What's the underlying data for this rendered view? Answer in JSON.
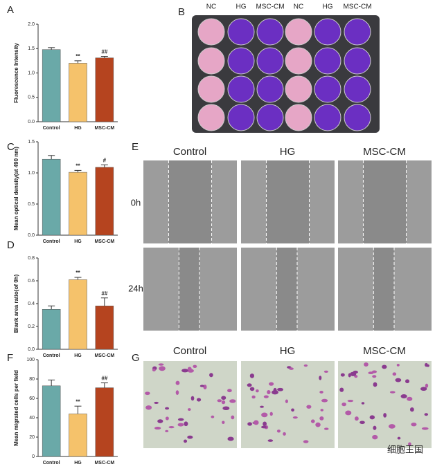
{
  "chart_data": [
    {
      "type": "bar",
      "y_label": "Fluorescence Intensity",
      "categories": [
        "Control",
        "HG",
        "MSC-CM"
      ],
      "values": [
        1.48,
        1.2,
        1.31
      ],
      "errors": [
        0.04,
        0.05,
        0.03
      ],
      "annotations": [
        null,
        "**",
        "##"
      ],
      "colors": [
        "#6aa9a8",
        "#f5c26b",
        "#b5441f"
      ],
      "ylim": [
        0,
        2
      ],
      "yticks": [
        {
          "value": 0,
          "label": "0.0"
        },
        0.5,
        {
          "value": 1,
          "label": "1.0"
        },
        1.5,
        {
          "value": 2,
          "label": "2.0"
        }
      ]
    },
    {
      "type": "bar",
      "y_label": "Mean optical density(at 490 nm)",
      "categories": [
        "Control",
        "HG",
        "MSC-CM"
      ],
      "values": [
        1.22,
        1.01,
        1.09
      ],
      "errors": [
        0.06,
        0.03,
        0.04
      ],
      "annotations": [
        null,
        "**",
        "#"
      ],
      "colors": [
        "#6aa9a8",
        "#f5c26b",
        "#b5441f"
      ],
      "ylim": [
        0,
        1.5
      ],
      "yticks": [
        {
          "value": 0,
          "label": "0.0"
        },
        0.5,
        {
          "value": 1,
          "label": "1.0"
        },
        1.5
      ]
    },
    {
      "type": "bar",
      "y_label": "Blank area ratio(of 0h)",
      "categories": [
        "Control",
        "HG",
        "MSC-CM"
      ],
      "values": [
        0.35,
        0.61,
        0.38
      ],
      "errors": [
        0.03,
        0.02,
        0.07
      ],
      "annotations": [
        null,
        "**",
        "##"
      ],
      "colors": [
        "#6aa9a8",
        "#f5c26b",
        "#b5441f"
      ],
      "ylim": [
        0,
        0.8
      ],
      "yticks": [
        {
          "value": 0,
          "label": "0.0"
        },
        0.2,
        0.4,
        0.6,
        0.8
      ]
    },
    {
      "type": "bar",
      "y_label": "Mean migrated cells per field",
      "categories": [
        "Control",
        "HG",
        "MSC-CM"
      ],
      "values": [
        73,
        44,
        71
      ],
      "errors": [
        6,
        8,
        5
      ],
      "annotations": [
        null,
        "**",
        "##"
      ],
      "colors": [
        "#6aa9a8",
        "#f5c26b",
        "#b5441f"
      ],
      "ylim": [
        0,
        100
      ],
      "yticks": [
        0,
        20,
        40,
        60,
        80,
        100
      ]
    }
  ],
  "figure": {
    "panel_labels": [
      "A",
      "B",
      "C",
      "D",
      "E",
      "F",
      "G"
    ],
    "plate_columns": [
      "NC",
      "HG",
      "MSC-CM",
      "NC",
      "HG",
      "MSC-CM"
    ],
    "wound_columns": [
      "Control",
      "HG",
      "MSC-CM"
    ],
    "wound_rows": [
      "0h",
      "24h"
    ],
    "transwell_columns": [
      "Control",
      "HG",
      "MSC-CM"
    ],
    "watermark": "细胞王国"
  }
}
